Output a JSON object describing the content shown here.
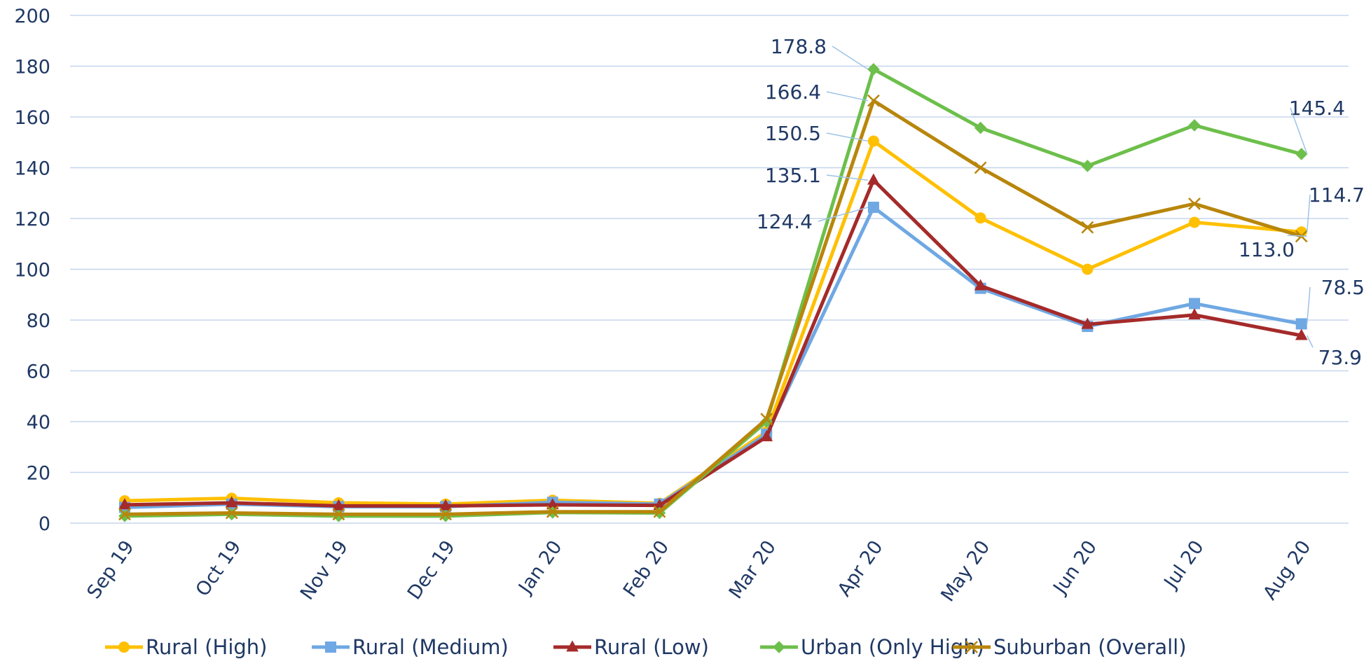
{
  "chart_data": {
    "type": "line",
    "categories": [
      "Sep 19",
      "Oct 19",
      "Nov 19",
      "Dec 19",
      "Jan 20",
      "Feb 20",
      "Mar 20",
      "Apr 20",
      "May 20",
      "Jun 20",
      "Jul 20",
      "Aug 20"
    ],
    "ylim": [
      0,
      200
    ],
    "yticks": [
      "0",
      "20",
      "40",
      "60",
      "80",
      "100",
      "120",
      "140",
      "160",
      "180",
      "200"
    ],
    "grid": true,
    "legend_position": "bottom",
    "series": [
      {
        "name": "Rural (High)",
        "color": "#ffc000",
        "marker": "circle",
        "values": [
          8.8,
          9.8,
          8.0,
          7.5,
          9.0,
          7.8,
          36.0,
          150.5,
          120.2,
          100.0,
          118.5,
          114.7
        ]
      },
      {
        "name": "Rural (Medium)",
        "color": "#6fa8e3",
        "marker": "square",
        "values": [
          6.2,
          7.5,
          6.5,
          6.5,
          8.2,
          7.5,
          35.0,
          124.4,
          92.5,
          77.5,
          86.5,
          78.5
        ]
      },
      {
        "name": "Rural (Low)",
        "color": "#a52a2a",
        "marker": "triangle",
        "values": [
          7.2,
          8.0,
          6.8,
          6.8,
          7.2,
          7.0,
          34.0,
          135.1,
          93.5,
          78.3,
          82.0,
          73.9
        ]
      },
      {
        "name": "Urban (Only High)",
        "color": "#6dbf4b",
        "marker": "diamond",
        "values": [
          2.8,
          3.5,
          2.8,
          2.8,
          4.2,
          4.0,
          40.0,
          178.8,
          155.7,
          140.7,
          156.7,
          145.4
        ]
      },
      {
        "name": "Suburban (Overall)",
        "color": "#b8860b",
        "marker": "x",
        "values": [
          3.5,
          4.0,
          3.5,
          3.5,
          4.5,
          4.5,
          41.0,
          166.4,
          140.0,
          116.5,
          125.8,
          113.0
        ]
      }
    ],
    "data_labels": [
      {
        "series": 3,
        "index": 7,
        "text": "178.8"
      },
      {
        "series": 4,
        "index": 7,
        "text": "166.4"
      },
      {
        "series": 0,
        "index": 7,
        "text": "150.5"
      },
      {
        "series": 2,
        "index": 7,
        "text": "135.1"
      },
      {
        "series": 1,
        "index": 7,
        "text": "124.4"
      },
      {
        "series": 3,
        "index": 11,
        "text": "145.4"
      },
      {
        "series": 0,
        "index": 11,
        "text": "114.7"
      },
      {
        "series": 4,
        "index": 11,
        "text": "113.0"
      },
      {
        "series": 1,
        "index": 11,
        "text": "78.5"
      },
      {
        "series": 2,
        "index": 11,
        "text": "73.9"
      }
    ]
  }
}
